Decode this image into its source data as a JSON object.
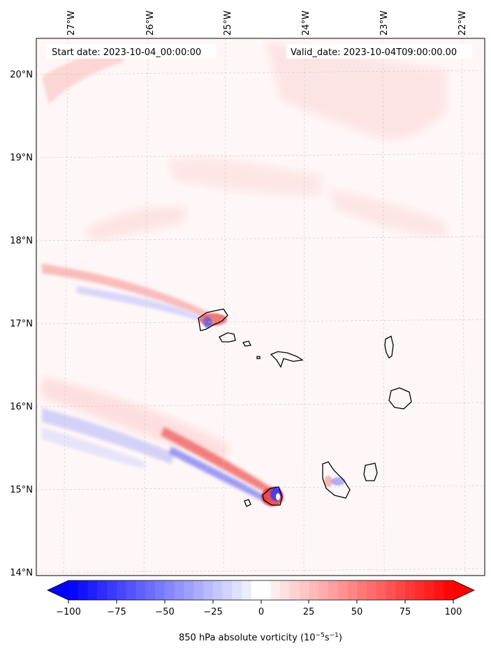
{
  "map": {
    "start_label": "Start date: 2023-10-04_00:00:00",
    "valid_label": "Valid_date: 2023-10-04T09:00:00.00",
    "lon_ticks": [
      "27°W",
      "26°W",
      "25°W",
      "24°W",
      "23°W",
      "22°W"
    ],
    "lat_ticks": [
      "20°N",
      "19°N",
      "18°N",
      "17°N",
      "16°N",
      "15°N",
      "14°N"
    ],
    "gridlines": true,
    "coastline_color": "#000000"
  },
  "colorbar": {
    "label_main": "850 hPa absolute vorticity (10",
    "label_exp1": "−5",
    "label_mid": "s",
    "label_exp2": "−1",
    "label_end": ")",
    "tick_labels": [
      "−100",
      "−75",
      "−50",
      "−25",
      "0",
      "25",
      "50",
      "75",
      "100"
    ],
    "min": -100,
    "max": 100,
    "neg_color": "#0000ff",
    "zero_color": "#ffffff",
    "pos_color": "#ff0000",
    "extend": "both"
  }
}
